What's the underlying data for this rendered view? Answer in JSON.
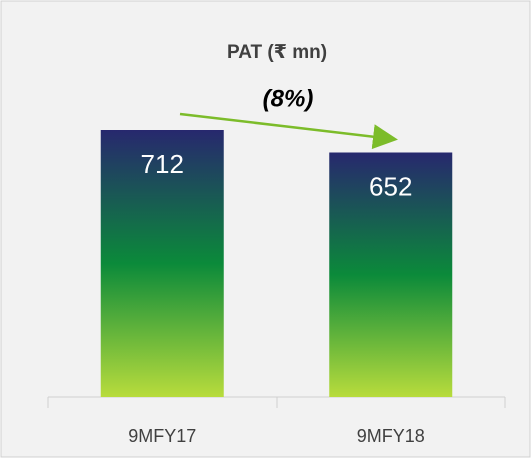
{
  "chart_data": {
    "type": "bar",
    "title": "PAT (₹ mn)",
    "annotation": "(8%)",
    "categories": [
      "9MFY17",
      "9MFY18"
    ],
    "values": [
      712,
      652
    ],
    "colors": [
      "#27286e",
      "#0b8a3a",
      "#b8dc3c"
    ],
    "ylim": [
      0,
      800
    ]
  }
}
